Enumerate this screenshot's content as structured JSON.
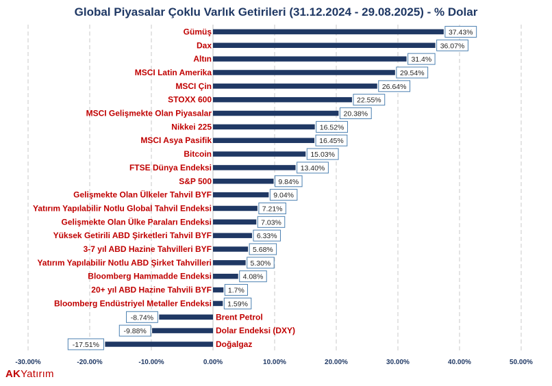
{
  "chart_data": {
    "type": "bar",
    "orientation": "horizontal",
    "title": "Global Piyasalar Çoklu Varlık Getirileri (31.12.2024 - 29.08.2025) - % Dolar",
    "categories": [
      "Gümüş",
      "Dax",
      "Altın",
      "MSCI Latin Amerika",
      "MSCI Çin",
      "STOXX 600",
      "MSCI Gelişmekte Olan Piyasalar",
      "Nikkei 225",
      "MSCI Asya Pasifik",
      "Bitcoin",
      "FTSE Dünya Endeksi",
      "S&P 500",
      "Gelişmekte Olan Ülkeler Tahvil BYF",
      "Yatırım Yapılabilir Notlu Global Tahvil Endeksi",
      "Gelişmekte Olan Ülke Paraları Endeksi",
      "Yüksek Getirili ABD Şirketleri Tahvil BYF",
      "3-7 yıl ABD Hazine Tahvilleri BYF",
      "Yatırım Yapılabilir Notlu  ABD Şirket Tahvilleri",
      "Bloomberg Hammadde Endeksi",
      "20+ yıl ABD Hazine Tahvili BYF",
      "Bloomberg Endüstriyel Metaller Endeksi",
      "Brent Petrol",
      "Dolar Endeksi (DXY)",
      "Doğalgaz"
    ],
    "values": [
      37.43,
      36.07,
      31.4,
      29.54,
      26.64,
      22.55,
      20.38,
      16.52,
      16.45,
      15.03,
      13.4,
      9.84,
      9.04,
      7.21,
      7.03,
      6.33,
      5.68,
      5.3,
      4.08,
      1.7,
      1.59,
      -8.74,
      -9.88,
      -17.51
    ],
    "data_labels": [
      "37.43%",
      "36.07%",
      "31.4%",
      "29.54%",
      "26.64%",
      "22.55%",
      "20.38%",
      "16.52%",
      "16.45%",
      "15.03%",
      "13.40%",
      "9.84%",
      "9.04%",
      "7.21%",
      "7.03%",
      "6.33%",
      "5.68%",
      "5.30%",
      "4.08%",
      "1.7%",
      "1.59%",
      "-8.74%",
      "-9.88%",
      "-17.51%"
    ],
    "xlim": [
      -30,
      50
    ],
    "x_ticks": [
      -30,
      -20,
      -10,
      0,
      10,
      20,
      30,
      40,
      50
    ],
    "x_tick_labels": [
      "-30.00%",
      "-20.00%",
      "-10.00%",
      "0.00%",
      "10.00%",
      "20.00%",
      "30.00%",
      "40.00%",
      "50.00%"
    ],
    "grid": "vertical dashed",
    "legend": "none",
    "colors": {
      "bar": "#1f3864",
      "category_label": "#c00000",
      "title": "#1f3864",
      "tick_label": "#1f3864",
      "data_label_border": "#4a7fb0",
      "grid": "#c8c8c8"
    }
  },
  "brand": {
    "part1": "AK",
    "part2": "Yatırım"
  }
}
